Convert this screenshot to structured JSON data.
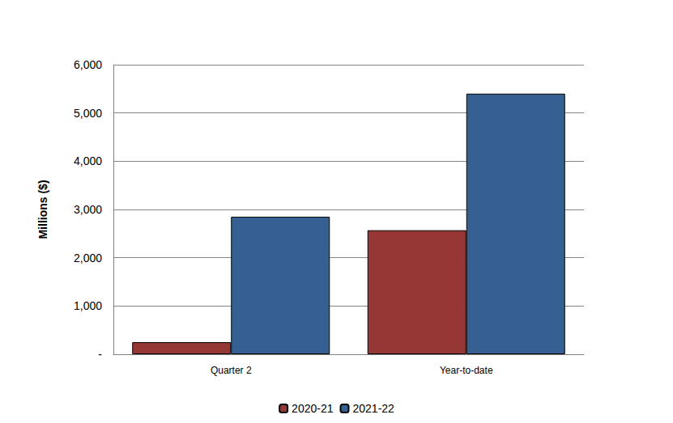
{
  "chart_data": {
    "type": "bar",
    "y_label": "Millions ($)",
    "categories": [
      "Quarter 2",
      "Year-to-date"
    ],
    "series": [
      {
        "name": "2020-21",
        "color": "#953735",
        "values": [
          250,
          2570
        ]
      },
      {
        "name": "2021-22",
        "color": "#376092",
        "values": [
          2850,
          5400
        ]
      }
    ],
    "ylim": [
      0,
      6000
    ],
    "yticks": [
      {
        "value": 0,
        "label": "-"
      },
      {
        "value": 1000,
        "label": "1,000"
      },
      {
        "value": 2000,
        "label": "2,000"
      },
      {
        "value": 3000,
        "label": "3,000"
      },
      {
        "value": 4000,
        "label": "4,000"
      },
      {
        "value": 5000,
        "label": "5,000"
      },
      {
        "value": 6000,
        "label": "6,000"
      }
    ],
    "grid": true,
    "legend": "bottom"
  }
}
